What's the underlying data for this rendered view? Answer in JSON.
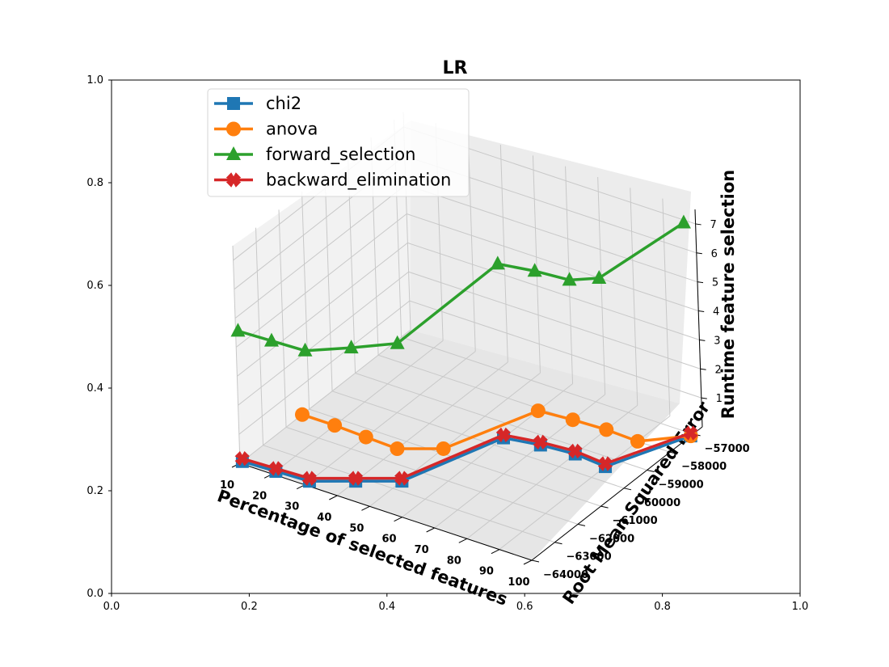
{
  "chart_data": {
    "type": "line",
    "projection": "3d",
    "title": "LR",
    "xlabel": "Percentage of selected features",
    "ylabel": "Root Mean Squared Error",
    "zlabel": "Runtime feature selection",
    "x_ticks": [
      "10",
      "20",
      "30",
      "40",
      "50",
      "60",
      "70",
      "80",
      "90",
      "100"
    ],
    "y_ticks": [
      "−64000",
      "−63000",
      "−62000",
      "−61000",
      "−60000",
      "−59000",
      "−58000",
      "−57000"
    ],
    "z_ticks": [
      "1",
      "2",
      "3",
      "4",
      "5",
      "6",
      "7"
    ],
    "outer_axes": {
      "x_ticks": [
        "0.0",
        "0.2",
        "0.4",
        "0.6",
        "0.8",
        "1.0"
      ],
      "y_ticks": [
        "0.0",
        "0.2",
        "0.4",
        "0.6",
        "0.8",
        "1.0"
      ]
    },
    "x": [
      10,
      20,
      30,
      40,
      50,
      60,
      70,
      80,
      90,
      100
    ],
    "xlim": [
      10,
      100
    ],
    "ylim": [
      -64000,
      -56600
    ],
    "zlim": [
      0,
      7.5
    ],
    "legend_position": "upper-left",
    "grid": true,
    "series": [
      {
        "name": "chi2",
        "color": "#1f77b4",
        "marker": "square",
        "y": [
          -63900,
          -63850,
          -63800,
          -63200,
          -62600,
          -59600,
          -59400,
          -59300,
          -59400,
          -57100
        ],
        "z": [
          0,
          0,
          0,
          0,
          0,
          0,
          0,
          0,
          0,
          0
        ]
      },
      {
        "name": "anova",
        "color": "#ff7f0e",
        "marker": "circle",
        "y": [
          -61300,
          -61300,
          -61350,
          -61400,
          -60800,
          -58100,
          -58000,
          -57950,
          -58000,
          -57100
        ],
        "z": [
          0,
          0,
          0,
          0,
          0,
          0,
          0,
          0,
          0,
          0
        ]
      },
      {
        "name": "forward_selection",
        "color": "#2ca02c",
        "marker": "triangle",
        "y": [
          -63900,
          -63850,
          -63800,
          -63200,
          -62600,
          -59600,
          -59400,
          -59300,
          -59400,
          -57100
        ],
        "z": [
          4.5,
          4.5,
          4.5,
          4.6,
          4.75,
          6.0,
          6.0,
          6.0,
          6.5,
          7.35
        ]
      },
      {
        "name": "backward_elimination",
        "color": "#d62728",
        "marker": "x",
        "y": [
          -63900,
          -63850,
          -63800,
          -63200,
          -62600,
          -59600,
          -59400,
          -59300,
          -59400,
          -57100
        ],
        "z": [
          0.1,
          0.1,
          0.1,
          0.1,
          0.1,
          0.1,
          0.1,
          0.1,
          0.1,
          0.1
        ]
      }
    ]
  }
}
